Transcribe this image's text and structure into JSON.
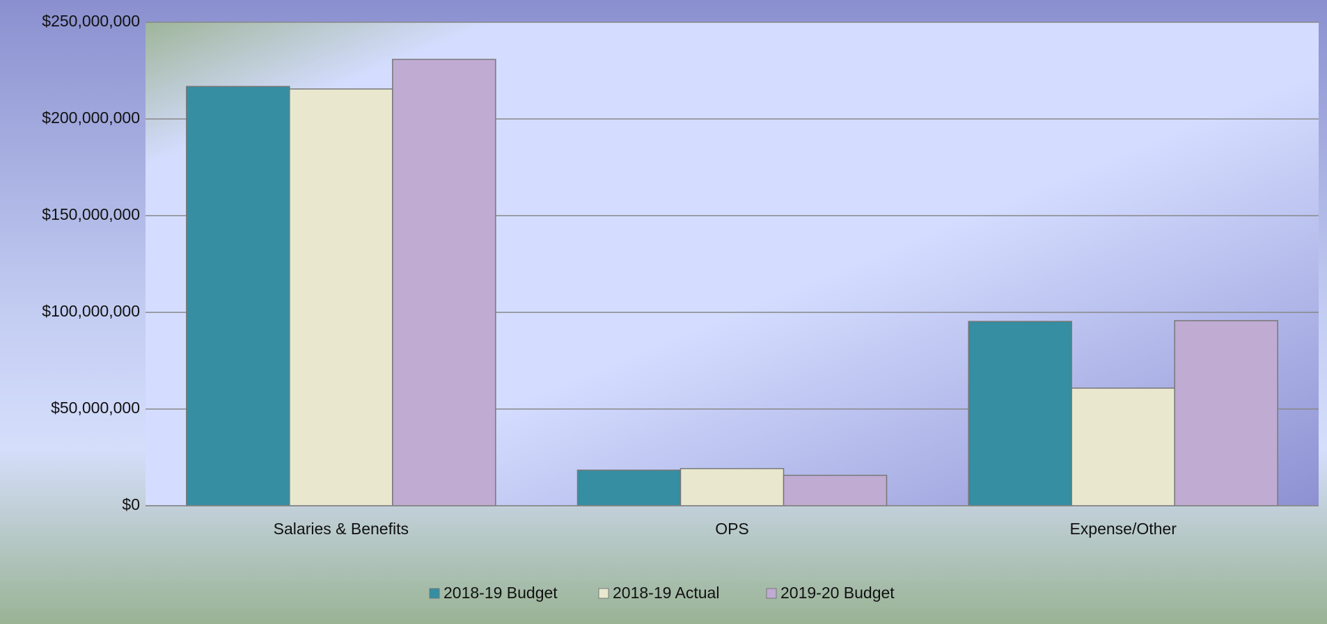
{
  "chart_data": {
    "type": "bar",
    "categories": [
      "Salaries & Benefits",
      "OPS",
      "Expense/Other"
    ],
    "series": [
      {
        "name": "2018-19 Budget",
        "color": "#358ea1",
        "values": [
          216800000,
          18400000,
          95300000
        ]
      },
      {
        "name": "2018-19 Actual",
        "color": "#e9e8cf",
        "values": [
          215500000,
          19200000,
          60800000
        ]
      },
      {
        "name": "2019-20 Budget",
        "color": "#c0abd3",
        "values": [
          230800000,
          15700000,
          95700000
        ]
      }
    ],
    "ylim": [
      0,
      250000000
    ],
    "yticks": [
      {
        "value": 0,
        "label": "$0"
      },
      {
        "value": 50000000,
        "label": "$50,000,000"
      },
      {
        "value": 100000000,
        "label": "$100,000,000"
      },
      {
        "value": 150000000,
        "label": "$150,000,000"
      },
      {
        "value": 200000000,
        "label": "$200,000,000"
      },
      {
        "value": 250000000,
        "label": "$250,000,000"
      }
    ],
    "grid": true,
    "legend": "bottom"
  }
}
